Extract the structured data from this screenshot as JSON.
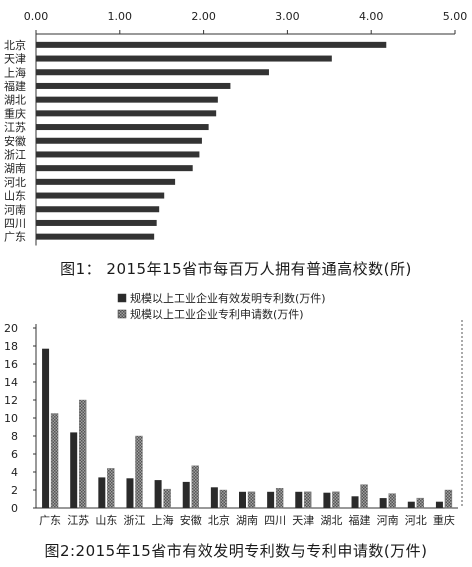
{
  "chart_data": [
    {
      "type": "bar",
      "orientation": "horizontal",
      "title": "图1：  2015年15省市每百万人拥有普通高校数(所)",
      "categories": [
        "北京",
        "天津",
        "上海",
        "福建",
        "湖北",
        "重庆",
        "江苏",
        "安徽",
        "浙江",
        "湖南",
        "河北",
        "山东",
        "河南",
        "四川",
        "广东"
      ],
      "values": [
        4.18,
        3.53,
        2.78,
        2.32,
        2.17,
        2.15,
        2.06,
        1.98,
        1.95,
        1.87,
        1.66,
        1.53,
        1.47,
        1.44,
        1.41
      ],
      "xlim": [
        0,
        5
      ],
      "xticks": [
        "0.00",
        "1.00",
        "2.00",
        "3.00",
        "4.00",
        "5.00"
      ],
      "grid": false,
      "bar_color": "#333333",
      "axis_position": "top"
    },
    {
      "type": "bar",
      "title": "图2:2015年15省市有效发明专利数与专利申请数(万件)",
      "categories": [
        "广东",
        "江苏",
        "山东",
        "浙江",
        "上海",
        "安徽",
        "北京",
        "湖南",
        "四川",
        "天津",
        "湖北",
        "福建",
        "河南",
        "河北",
        "重庆"
      ],
      "series": [
        {
          "name": "规模以上工业企业有效发明专利数(万件)",
          "values": [
            17.7,
            8.4,
            3.4,
            3.3,
            3.1,
            2.9,
            2.3,
            1.8,
            1.8,
            1.8,
            1.7,
            1.3,
            1.1,
            0.7,
            0.7
          ],
          "color": "#2a2a2a",
          "pattern": "solid"
        },
        {
          "name": "规模以上工业企业专利申请数(万件)",
          "values": [
            10.5,
            12.0,
            4.4,
            8.0,
            2.1,
            4.7,
            2.0,
            1.8,
            2.2,
            1.8,
            1.8,
            2.6,
            1.6,
            1.1,
            2.0
          ],
          "color": "#8a8a8a",
          "pattern": "hatched"
        }
      ],
      "ylim": [
        0,
        20
      ],
      "yticks": [
        "0",
        "2",
        "4",
        "6",
        "8",
        "10",
        "12",
        "14",
        "16",
        "18",
        "20"
      ],
      "legend": "top-center",
      "grid": false
    }
  ]
}
